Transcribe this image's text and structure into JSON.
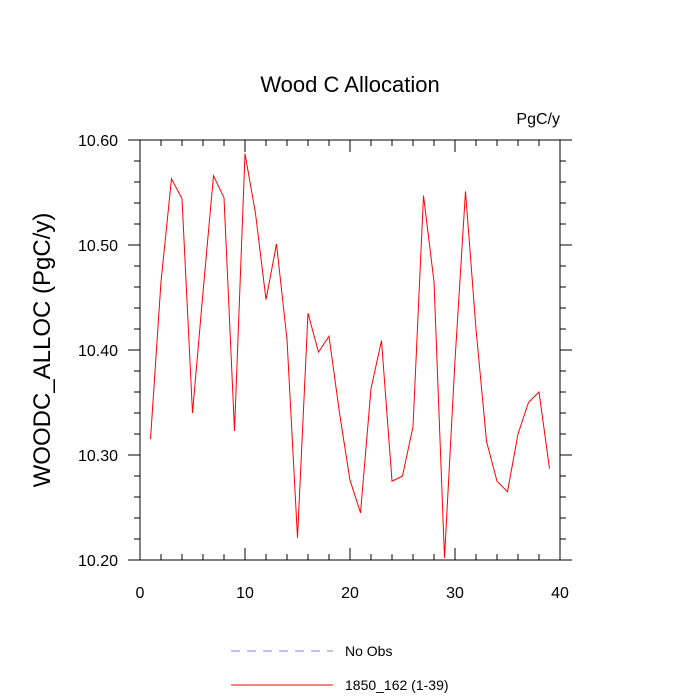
{
  "chart_data": {
    "type": "line",
    "title": "Wood C Allocation",
    "units_label": "PgC/y",
    "xlabel": "",
    "ylabel": "WOODC_ALLOC  (PgC/y)",
    "xlim": [
      0,
      40
    ],
    "ylim": [
      10.2,
      10.6
    ],
    "x_ticks": [
      0,
      10,
      20,
      30,
      40
    ],
    "y_ticks": [
      10.2,
      10.3,
      10.4,
      10.5,
      10.6
    ],
    "y_tick_labels": [
      "10.20",
      "10.30",
      "10.40",
      "10.50",
      "10.60"
    ],
    "x_tick_labels": [
      "0",
      "10",
      "20",
      "30",
      "40"
    ],
    "series": [
      {
        "name": "1850_162 (1-39)",
        "color": "#ff0000",
        "style": "solid",
        "x": [
          1,
          2,
          3,
          4,
          5,
          6,
          7,
          8,
          9,
          10,
          11,
          12,
          13,
          14,
          15,
          16,
          17,
          18,
          19,
          20,
          21,
          22,
          23,
          24,
          25,
          26,
          27,
          28,
          29,
          30,
          31,
          32,
          33,
          34,
          35,
          36,
          37,
          38,
          39
        ],
        "values": [
          10.315,
          10.465,
          10.563,
          10.544,
          10.34,
          10.455,
          10.566,
          10.545,
          10.323,
          10.587,
          10.53,
          10.448,
          10.501,
          10.41,
          10.221,
          10.435,
          10.398,
          10.413,
          10.34,
          10.276,
          10.245,
          10.363,
          10.409,
          10.275,
          10.28,
          10.327,
          10.547,
          10.465,
          10.202,
          10.39,
          10.551,
          10.42,
          10.313,
          10.275,
          10.265,
          10.32,
          10.35,
          10.36,
          10.287
        ]
      }
    ],
    "legend": [
      {
        "label": "No Obs",
        "color": "#8080ff",
        "style": "dashed"
      },
      {
        "label": "1850_162 (1-39)",
        "color": "#ff0000",
        "style": "solid"
      }
    ],
    "legend_position": "bottom"
  }
}
